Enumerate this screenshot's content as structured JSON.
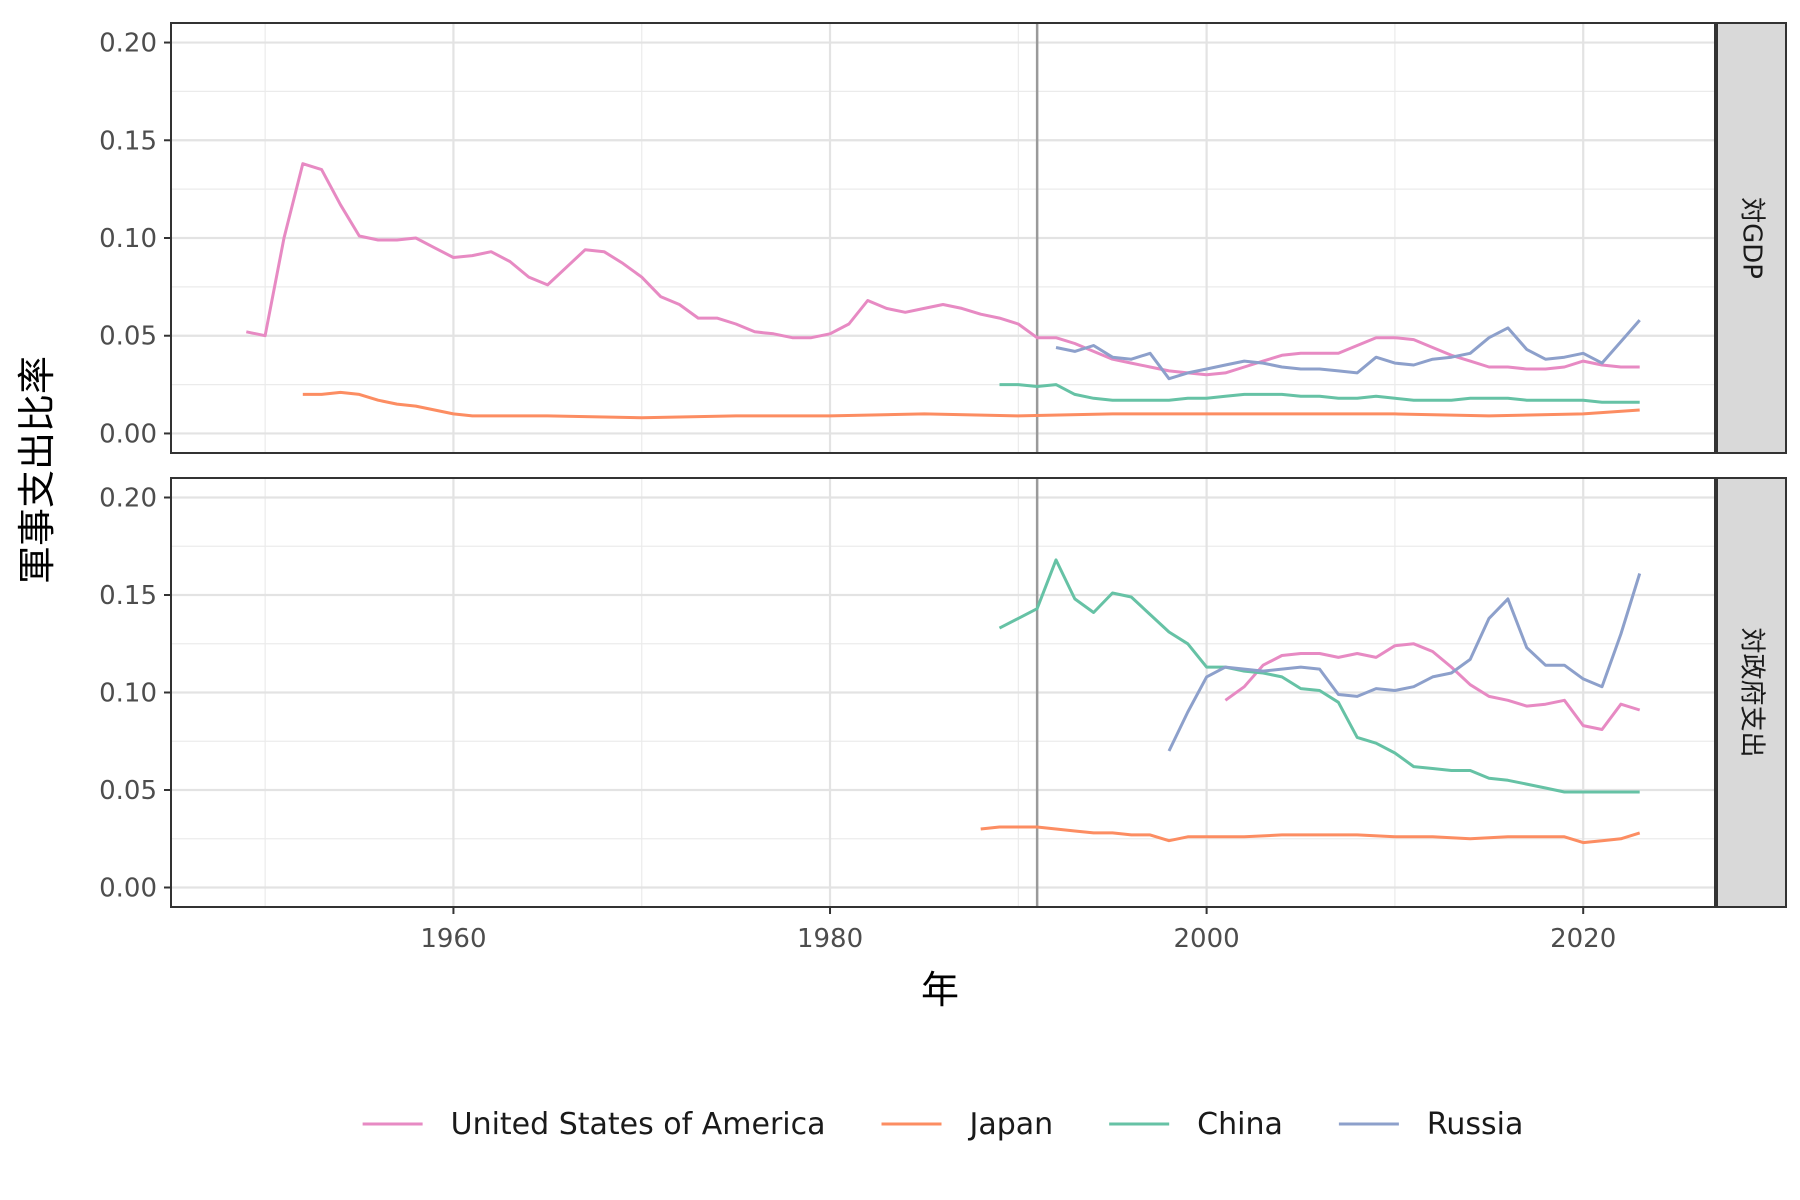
{
  "chart_data": {
    "type": "line",
    "xlabel": "年",
    "ylabel": "軍事支出比率",
    "xlim": [
      1945,
      2027
    ],
    "ylim": [
      -0.01,
      0.21
    ],
    "x_ticks": [
      1960,
      1980,
      2000,
      2020
    ],
    "x_tick_labels": [
      "1960",
      "1980",
      "2000",
      "2020"
    ],
    "y_ticks": [
      0,
      0.05,
      0.1,
      0.15,
      0.2
    ],
    "y_tick_labels": [
      "0.00",
      "0.05",
      "0.10",
      "0.15",
      "0.20"
    ],
    "vline_x": 1991,
    "grid": true,
    "legend_position": "bottom",
    "panels": [
      {
        "strip": "対GDP",
        "series": [
          {
            "name": "United States of America",
            "color": "#e78ac3",
            "x": [
              1949,
              1950,
              1951,
              1952,
              1953,
              1954,
              1955,
              1956,
              1957,
              1958,
              1959,
              1960,
              1961,
              1962,
              1963,
              1964,
              1965,
              1966,
              1967,
              1968,
              1969,
              1970,
              1971,
              1972,
              1973,
              1974,
              1975,
              1976,
              1977,
              1978,
              1979,
              1980,
              1981,
              1982,
              1983,
              1984,
              1985,
              1986,
              1987,
              1988,
              1989,
              1990,
              1991,
              1992,
              1993,
              1994,
              1995,
              1996,
              1997,
              1998,
              1999,
              2000,
              2001,
              2002,
              2003,
              2004,
              2005,
              2006,
              2007,
              2008,
              2009,
              2010,
              2011,
              2012,
              2013,
              2014,
              2015,
              2016,
              2017,
              2018,
              2019,
              2020,
              2021,
              2022,
              2023
            ],
            "y": [
              0.052,
              0.05,
              0.1,
              0.138,
              0.135,
              0.117,
              0.101,
              0.099,
              0.099,
              0.1,
              0.095,
              0.09,
              0.091,
              0.093,
              0.088,
              0.08,
              0.076,
              0.085,
              0.094,
              0.093,
              0.087,
              0.08,
              0.07,
              0.066,
              0.059,
              0.059,
              0.056,
              0.052,
              0.051,
              0.049,
              0.049,
              0.051,
              0.056,
              0.068,
              0.064,
              0.062,
              0.064,
              0.066,
              0.064,
              0.061,
              0.059,
              0.056,
              0.049,
              0.049,
              0.046,
              0.042,
              0.038,
              0.036,
              0.034,
              0.032,
              0.031,
              0.03,
              0.031,
              0.034,
              0.037,
              0.04,
              0.041,
              0.041,
              0.041,
              0.045,
              0.049,
              0.049,
              0.048,
              0.044,
              0.04,
              0.037,
              0.034,
              0.034,
              0.033,
              0.033,
              0.034,
              0.037,
              0.035,
              0.034,
              0.034
            ]
          },
          {
            "name": "Japan",
            "color": "#fc8d62",
            "x": [
              1952,
              1953,
              1954,
              1955,
              1956,
              1957,
              1958,
              1959,
              1960,
              1961,
              1962,
              1965,
              1970,
              1975,
              1980,
              1985,
              1990,
              1995,
              2000,
              2005,
              2010,
              2015,
              2020,
              2023
            ],
            "y": [
              0.02,
              0.02,
              0.021,
              0.02,
              0.017,
              0.015,
              0.014,
              0.012,
              0.01,
              0.009,
              0.009,
              0.009,
              0.008,
              0.009,
              0.009,
              0.01,
              0.009,
              0.01,
              0.01,
              0.01,
              0.01,
              0.009,
              0.01,
              0.012
            ]
          },
          {
            "name": "China",
            "color": "#66c2a5",
            "x": [
              1989,
              1990,
              1991,
              1992,
              1993,
              1994,
              1995,
              1996,
              1997,
              1998,
              1999,
              2000,
              2001,
              2002,
              2003,
              2004,
              2005,
              2006,
              2007,
              2008,
              2009,
              2010,
              2011,
              2012,
              2013,
              2014,
              2015,
              2016,
              2017,
              2018,
              2019,
              2020,
              2021,
              2022,
              2023
            ],
            "y": [
              0.025,
              0.025,
              0.024,
              0.025,
              0.02,
              0.018,
              0.017,
              0.017,
              0.017,
              0.017,
              0.018,
              0.018,
              0.019,
              0.02,
              0.02,
              0.02,
              0.019,
              0.019,
              0.018,
              0.018,
              0.019,
              0.018,
              0.017,
              0.017,
              0.017,
              0.018,
              0.018,
              0.018,
              0.017,
              0.017,
              0.017,
              0.017,
              0.016,
              0.016,
              0.016
            ]
          },
          {
            "name": "Russia",
            "color": "#8da0cb",
            "x": [
              1992,
              1993,
              1994,
              1995,
              1996,
              1997,
              1998,
              1999,
              2000,
              2001,
              2002,
              2003,
              2004,
              2005,
              2006,
              2007,
              2008,
              2009,
              2010,
              2011,
              2012,
              2013,
              2014,
              2015,
              2016,
              2017,
              2018,
              2019,
              2020,
              2021,
              2022,
              2023
            ],
            "y": [
              0.044,
              0.042,
              0.045,
              0.039,
              0.038,
              0.041,
              0.028,
              0.031,
              0.033,
              0.035,
              0.037,
              0.036,
              0.034,
              0.033,
              0.033,
              0.032,
              0.031,
              0.039,
              0.036,
              0.035,
              0.038,
              0.039,
              0.041,
              0.049,
              0.054,
              0.043,
              0.038,
              0.039,
              0.041,
              0.036,
              0.047,
              0.058
            ]
          }
        ]
      },
      {
        "strip": "対政府支出",
        "series": [
          {
            "name": "United States of America",
            "color": "#e78ac3",
            "x": [
              2001,
              2002,
              2003,
              2004,
              2005,
              2006,
              2007,
              2008,
              2009,
              2010,
              2011,
              2012,
              2013,
              2014,
              2015,
              2016,
              2017,
              2018,
              2019,
              2020,
              2021,
              2022,
              2023
            ],
            "y": [
              0.096,
              0.103,
              0.114,
              0.119,
              0.12,
              0.12,
              0.118,
              0.12,
              0.118,
              0.124,
              0.125,
              0.121,
              0.113,
              0.104,
              0.098,
              0.096,
              0.093,
              0.094,
              0.096,
              0.083,
              0.081,
              0.094,
              0.091
            ]
          },
          {
            "name": "Japan",
            "color": "#fc8d62",
            "x": [
              1988,
              1989,
              1990,
              1991,
              1992,
              1993,
              1994,
              1995,
              1996,
              1997,
              1998,
              1999,
              2000,
              2002,
              2004,
              2006,
              2008,
              2010,
              2012,
              2014,
              2016,
              2018,
              2019,
              2020,
              2021,
              2022,
              2023
            ],
            "y": [
              0.03,
              0.031,
              0.031,
              0.031,
              0.03,
              0.029,
              0.028,
              0.028,
              0.027,
              0.027,
              0.024,
              0.026,
              0.026,
              0.026,
              0.027,
              0.027,
              0.027,
              0.026,
              0.026,
              0.025,
              0.026,
              0.026,
              0.026,
              0.023,
              0.024,
              0.025,
              0.028
            ]
          },
          {
            "name": "China",
            "color": "#66c2a5",
            "x": [
              1989,
              1990,
              1991,
              1992,
              1993,
              1994,
              1995,
              1996,
              1997,
              1998,
              1999,
              2000,
              2001,
              2002,
              2003,
              2004,
              2005,
              2006,
              2007,
              2008,
              2009,
              2010,
              2011,
              2012,
              2013,
              2014,
              2015,
              2016,
              2017,
              2018,
              2019,
              2020,
              2021,
              2022,
              2023
            ],
            "y": [
              0.133,
              0.138,
              0.143,
              0.168,
              0.148,
              0.141,
              0.151,
              0.149,
              0.14,
              0.131,
              0.125,
              0.113,
              0.113,
              0.111,
              0.11,
              0.108,
              0.102,
              0.101,
              0.095,
              0.077,
              0.074,
              0.069,
              0.062,
              0.061,
              0.06,
              0.06,
              0.056,
              0.055,
              0.053,
              0.051,
              0.049,
              0.049,
              0.049,
              0.049,
              0.049
            ]
          },
          {
            "name": "Russia",
            "color": "#8da0cb",
            "x": [
              1998,
              1999,
              2000,
              2001,
              2002,
              2003,
              2004,
              2005,
              2006,
              2007,
              2008,
              2009,
              2010,
              2011,
              2012,
              2013,
              2014,
              2015,
              2016,
              2017,
              2018,
              2019,
              2020,
              2021,
              2022,
              2023
            ],
            "y": [
              0.07,
              0.09,
              0.108,
              0.113,
              0.112,
              0.111,
              0.112,
              0.113,
              0.112,
              0.099,
              0.098,
              0.102,
              0.101,
              0.103,
              0.108,
              0.11,
              0.117,
              0.138,
              0.148,
              0.123,
              0.114,
              0.114,
              0.107,
              0.103,
              0.13,
              0.161
            ]
          }
        ]
      }
    ],
    "legend": [
      {
        "name": "United States of America",
        "color": "#e78ac3"
      },
      {
        "name": "Japan",
        "color": "#fc8d62"
      },
      {
        "name": "China",
        "color": "#66c2a5"
      },
      {
        "name": "Russia",
        "color": "#8da0cb"
      }
    ]
  }
}
